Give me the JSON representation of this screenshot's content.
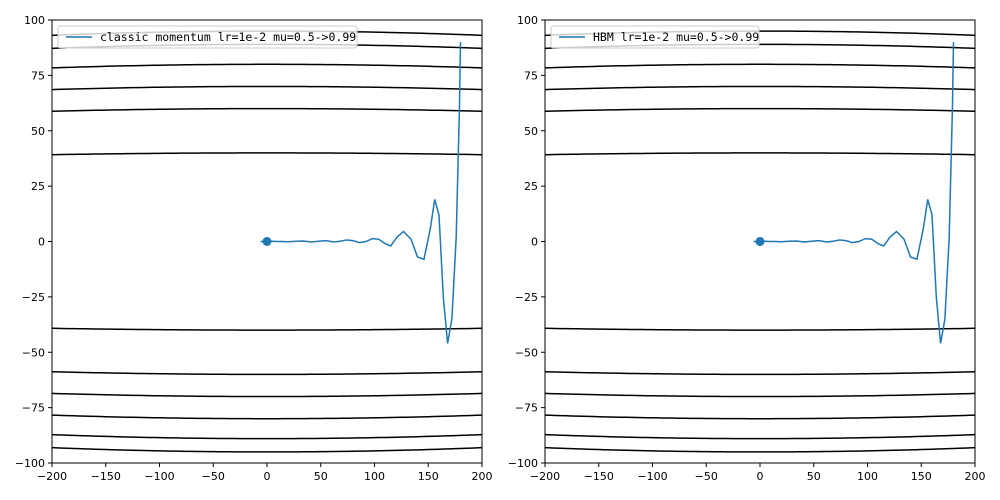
{
  "chart_data": [
    {
      "type": "line",
      "xlim": [
        -200,
        200
      ],
      "ylim": [
        -100,
        100
      ],
      "xticks": [
        -200,
        -150,
        -100,
        -50,
        0,
        50,
        100,
        150,
        200
      ],
      "yticks": [
        -100,
        -75,
        -50,
        -25,
        0,
        25,
        50,
        75,
        100
      ],
      "xtick_labels": [
        "−200",
        "−150",
        "−100",
        "−50",
        "0",
        "50",
        "100",
        "150",
        "200"
      ],
      "ytick_labels": [
        "−100",
        "−75",
        "−50",
        "−25",
        "0",
        "25",
        "50",
        "75",
        "100"
      ],
      "grid": false,
      "legend_position": "top-left",
      "contour_levels_y_at_x0": [
        40,
        60,
        70,
        80,
        89,
        95
      ],
      "contour_color": "#000000",
      "minimum_marker": {
        "x": 0,
        "y": 0
      },
      "series": [
        {
          "name": "classic momentum lr=1e-2 mu=0.5->0.99",
          "color": "#1f77b4",
          "x": [
            180,
            179,
            176,
            172,
            168,
            164,
            160,
            156,
            152,
            146,
            140,
            134,
            127,
            121,
            115,
            110,
            104,
            98,
            92,
            86,
            80,
            74,
            68,
            62,
            55,
            48,
            41,
            34,
            27,
            20,
            14,
            9,
            5,
            2,
            0,
            -2,
            -4,
            -6
          ],
          "y": [
            90,
            60,
            2,
            -35,
            -46,
            -25,
            12,
            19,
            6,
            -8,
            -7,
            1,
            4.5,
            2,
            -2,
            -1,
            1,
            1.3,
            0,
            -0.5,
            0.4,
            0.7,
            0.1,
            -0.2,
            0.4,
            0.1,
            -0.2,
            0.2,
            0.1,
            -0.1,
            0,
            0,
            0.1,
            0,
            0,
            0,
            0,
            0
          ]
        }
      ]
    },
    {
      "type": "line",
      "xlim": [
        -200,
        200
      ],
      "ylim": [
        -100,
        100
      ],
      "xticks": [
        -200,
        -150,
        -100,
        -50,
        0,
        50,
        100,
        150,
        200
      ],
      "yticks": [
        -100,
        -75,
        -50,
        -25,
        0,
        25,
        50,
        75,
        100
      ],
      "xtick_labels": [
        "−200",
        "−150",
        "−100",
        "−50",
        "0",
        "50",
        "100",
        "150",
        "200"
      ],
      "ytick_labels": [
        "−100",
        "−75",
        "−50",
        "−25",
        "0",
        "25",
        "50",
        "75",
        "100"
      ],
      "grid": false,
      "legend_position": "top-left",
      "contour_levels_y_at_x0": [
        40,
        60,
        70,
        80,
        89,
        95
      ],
      "contour_color": "#000000",
      "minimum_marker": {
        "x": 0,
        "y": 0
      },
      "series": [
        {
          "name": "HBM lr=1e-2 mu=0.5->0.99",
          "color": "#1f77b4",
          "x": [
            180,
            179,
            176,
            172,
            168,
            164,
            160,
            156,
            152,
            146,
            140,
            134,
            127,
            121,
            115,
            110,
            104,
            98,
            92,
            86,
            80,
            74,
            68,
            62,
            55,
            48,
            41,
            34,
            27,
            20,
            14,
            9,
            5,
            2,
            0,
            -2,
            -4,
            -6
          ],
          "y": [
            90,
            60,
            2,
            -35,
            -46,
            -25,
            12,
            19,
            6,
            -8,
            -7,
            1,
            4.5,
            2,
            -2,
            -1,
            1,
            1.3,
            0,
            -0.5,
            0.4,
            0.7,
            0.1,
            -0.2,
            0.4,
            0.1,
            -0.2,
            0.2,
            0.1,
            -0.1,
            0,
            0,
            0.1,
            0,
            0,
            0,
            0,
            0
          ]
        }
      ]
    }
  ]
}
